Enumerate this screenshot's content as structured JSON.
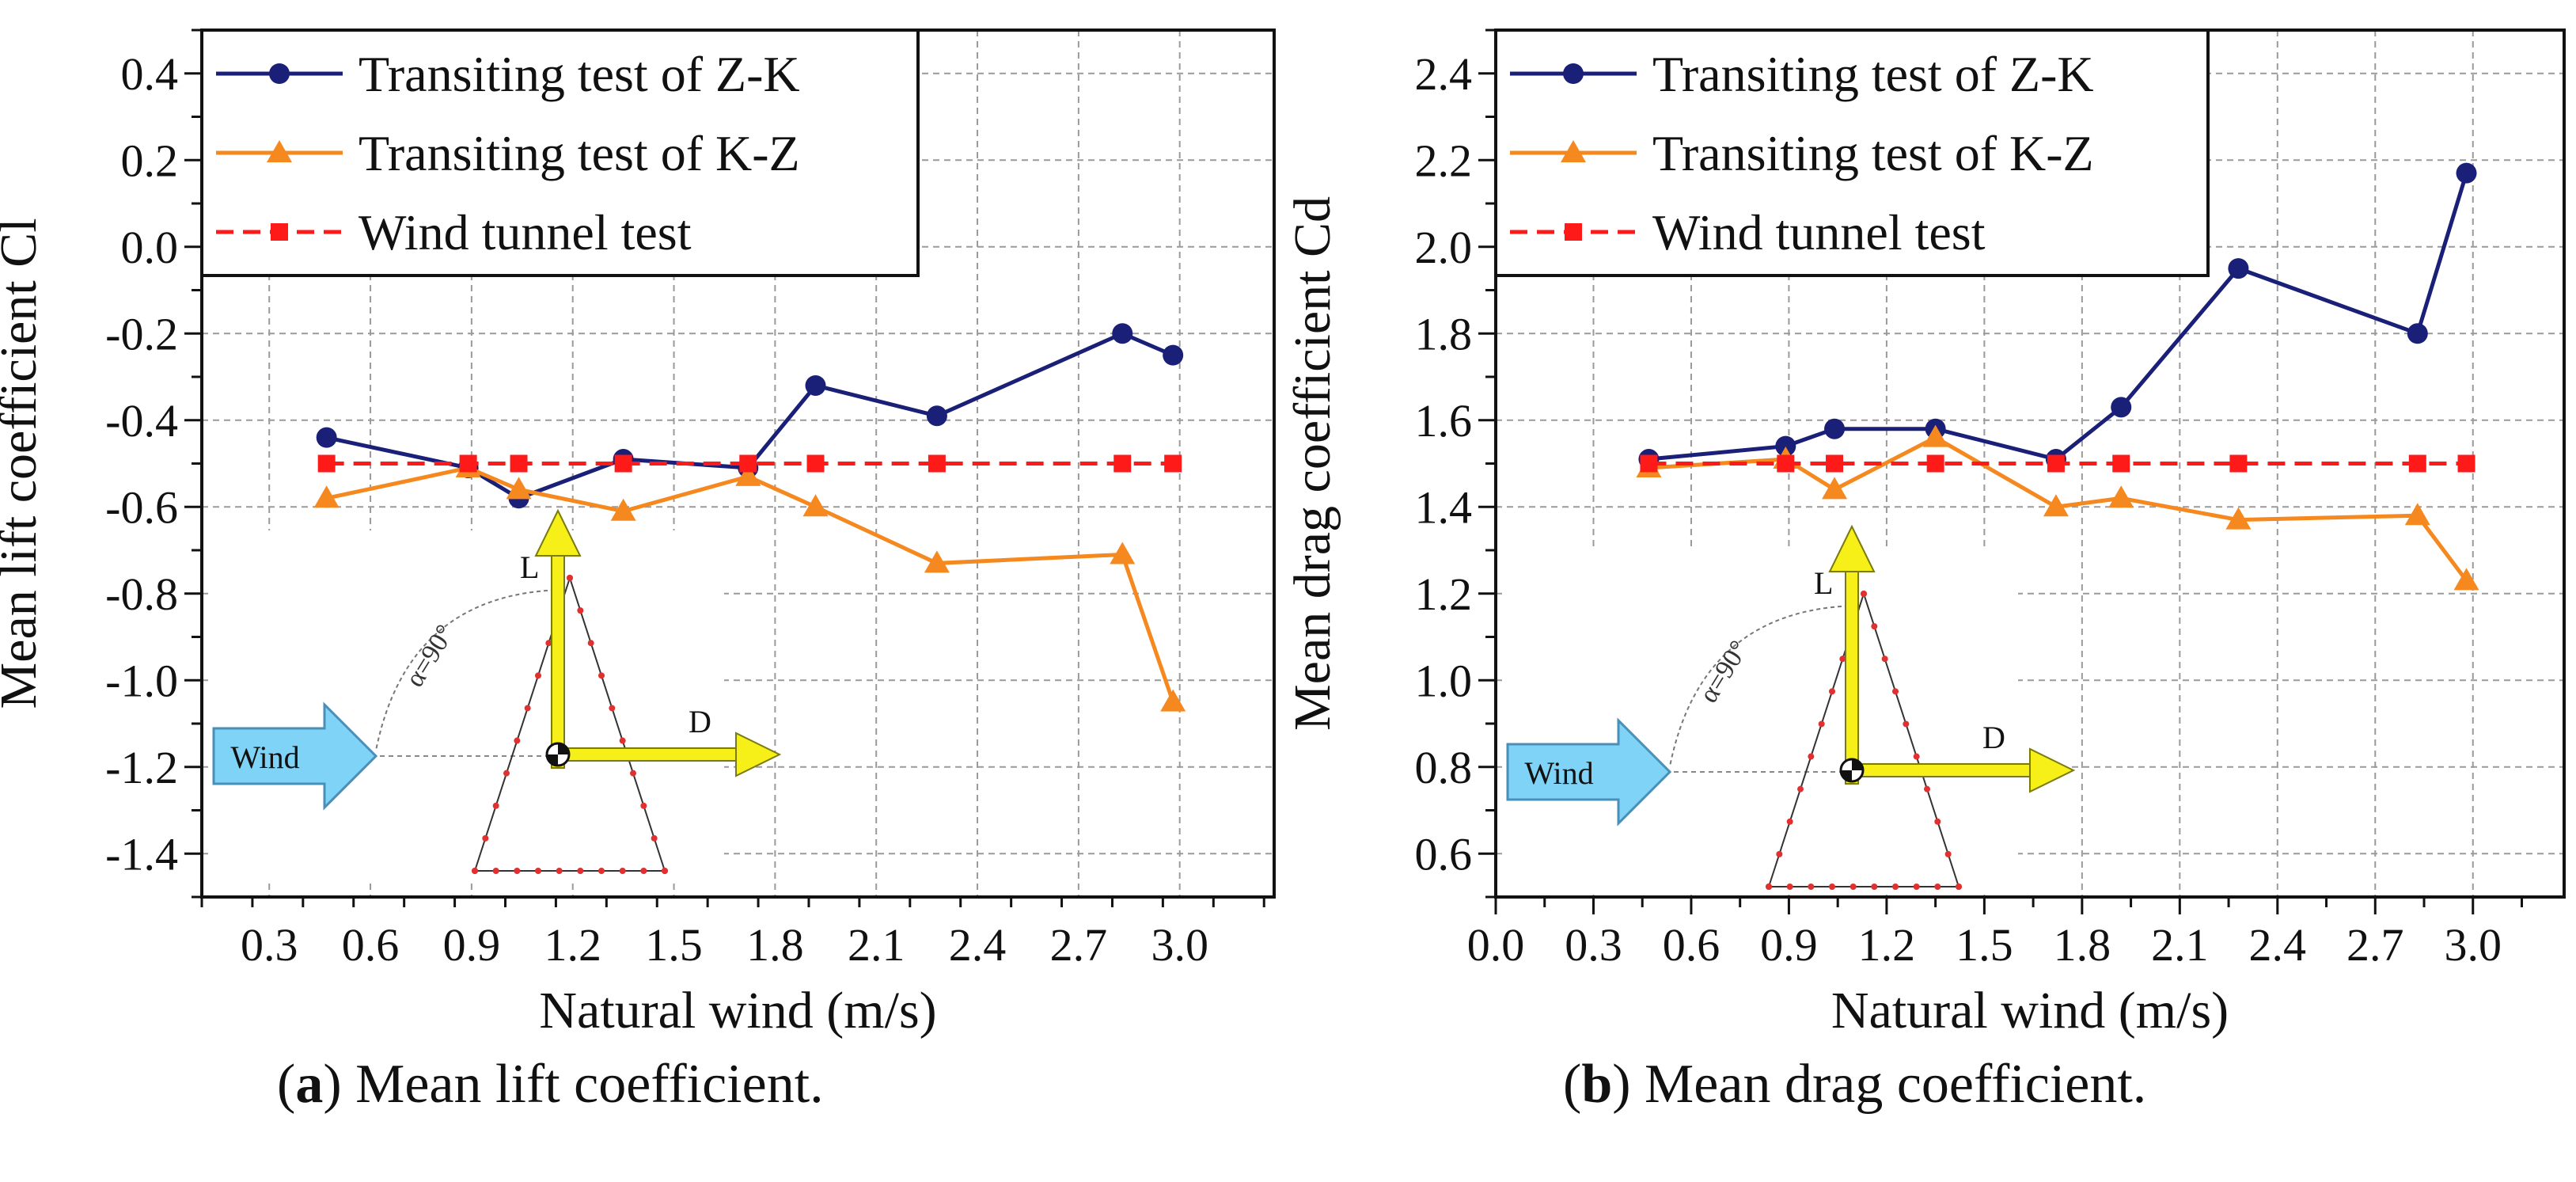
{
  "captions": [
    {
      "letter": "a",
      "text": ") Mean lift coefficient."
    },
    {
      "letter": "b",
      "text": ") Mean drag coefficient."
    }
  ],
  "chart_data": [
    {
      "type": "line",
      "xlabel": "Natural wind (m/s)",
      "ylabel": "Mean lift coefficient Cl",
      "xlim": [
        0.1,
        3.28
      ],
      "ylim": [
        -1.5,
        0.5
      ],
      "xticks": [
        "0.3",
        "0.6",
        "0.9",
        "1.2",
        "1.5",
        "1.8",
        "2.1",
        "2.4",
        "2.7",
        "3.0"
      ],
      "yticks": [
        "0.4",
        "0.2",
        "0.0",
        "-0.2",
        "-0.4",
        "-0.6",
        "-0.8",
        "-1.0",
        "-1.2",
        "-1.4"
      ],
      "grid": true,
      "legend_position": "top-left",
      "series": [
        {
          "name": "Transiting test of Z-K",
          "color": "#1a1f78",
          "marker": "circle",
          "x": [
            0.47,
            0.89,
            1.04,
            1.35,
            1.72,
            1.92,
            2.28,
            2.83,
            2.98
          ],
          "y": [
            -0.44,
            -0.51,
            -0.58,
            -0.49,
            -0.51,
            -0.32,
            -0.39,
            -0.2,
            -0.25
          ]
        },
        {
          "name": "Transiting test of K-Z",
          "color": "#f5891f",
          "marker": "triangle",
          "x": [
            0.47,
            0.89,
            1.04,
            1.35,
            1.72,
            1.92,
            2.28,
            2.83,
            2.98
          ],
          "y": [
            -0.58,
            -0.51,
            -0.56,
            -0.61,
            -0.53,
            -0.6,
            -0.73,
            -0.71,
            -1.05
          ]
        },
        {
          "name": "Wind tunnel test",
          "color": "#ff1a1a",
          "marker": "square",
          "dashed": true,
          "x": [
            0.47,
            0.89,
            1.04,
            1.35,
            1.72,
            1.92,
            2.28,
            2.83,
            2.98
          ],
          "y": [
            -0.5,
            -0.5,
            -0.5,
            -0.5,
            -0.5,
            -0.5,
            -0.5,
            -0.5,
            -0.5
          ]
        }
      ],
      "inset": {
        "wind_label": "Wind",
        "lift_label": "L",
        "drag_label": "D",
        "angle_label": "α=90°"
      }
    },
    {
      "type": "line",
      "xlabel": "Natural wind (m/s)",
      "ylabel": "Mean drag coefficient Cd",
      "xlim": [
        0.0,
        3.28
      ],
      "ylim": [
        0.5,
        2.5
      ],
      "xticks": [
        "0.0",
        "0.3",
        "0.6",
        "0.9",
        "1.2",
        "1.5",
        "1.8",
        "2.1",
        "2.4",
        "2.7",
        "3.0"
      ],
      "yticks": [
        "2.4",
        "2.2",
        "2.0",
        "1.8",
        "1.6",
        "1.4",
        "1.2",
        "1.0",
        "0.8",
        "0.6"
      ],
      "grid": true,
      "legend_position": "top-left",
      "series": [
        {
          "name": "Transiting test of Z-K",
          "color": "#1a1f78",
          "marker": "circle",
          "x": [
            0.47,
            0.89,
            1.04,
            1.35,
            1.72,
            1.92,
            2.28,
            2.83,
            2.98
          ],
          "y": [
            1.51,
            1.54,
            1.58,
            1.58,
            1.51,
            1.63,
            1.95,
            1.8,
            2.17
          ]
        },
        {
          "name": "Transiting test of K-Z",
          "color": "#f5891f",
          "marker": "triangle",
          "x": [
            0.47,
            0.89,
            1.04,
            1.35,
            1.72,
            1.92,
            2.28,
            2.83,
            2.98
          ],
          "y": [
            1.49,
            1.51,
            1.44,
            1.56,
            1.4,
            1.42,
            1.37,
            1.38,
            1.23
          ]
        },
        {
          "name": "Wind tunnel test",
          "color": "#ff1a1a",
          "marker": "square",
          "dashed": true,
          "x": [
            0.47,
            0.89,
            1.04,
            1.35,
            1.72,
            1.92,
            2.28,
            2.83,
            2.98
          ],
          "y": [
            1.5,
            1.5,
            1.5,
            1.5,
            1.5,
            1.5,
            1.5,
            1.5,
            1.5
          ]
        }
      ],
      "inset": {
        "wind_label": "Wind",
        "lift_label": "L",
        "drag_label": "D",
        "angle_label": "α=90°"
      }
    }
  ]
}
